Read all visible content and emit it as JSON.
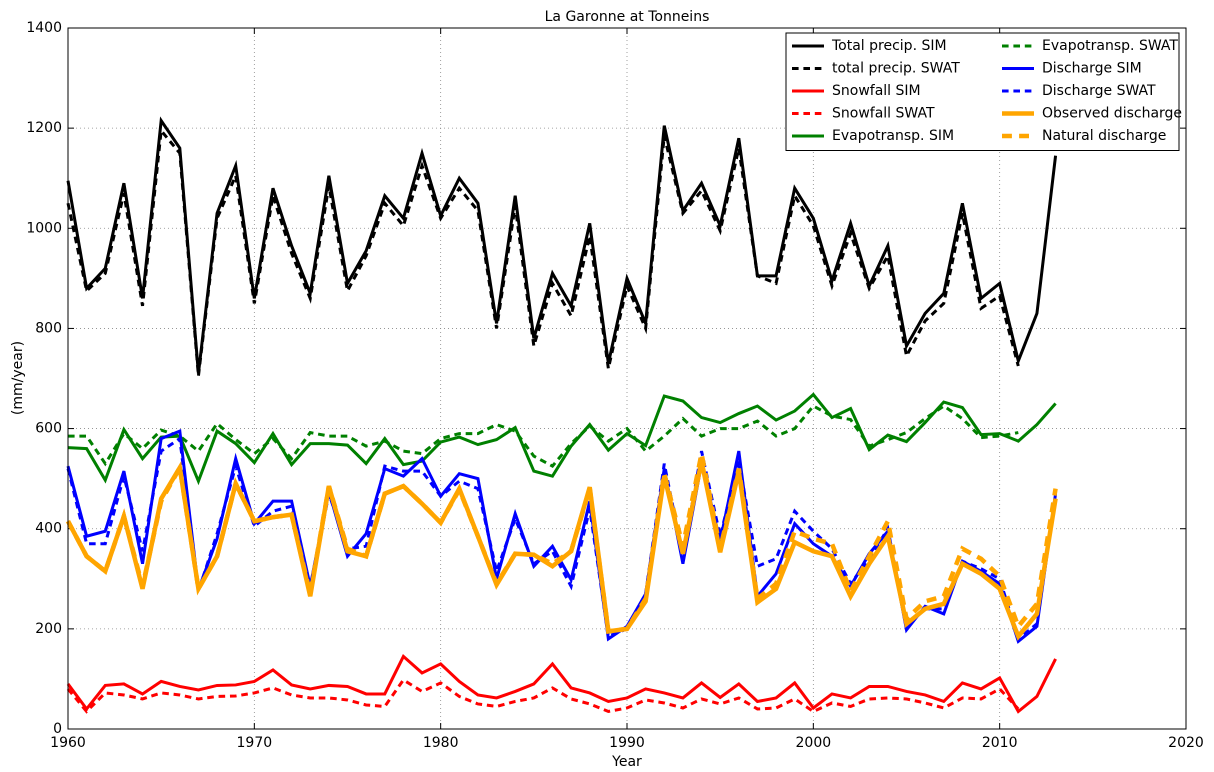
{
  "chart_data": {
    "type": "line",
    "title": "La Garonne at Tonneins",
    "xlabel": "Year",
    "ylabel": "(mm/year)",
    "x": [
      1960,
      1961,
      1962,
      1963,
      1964,
      1965,
      1966,
      1967,
      1968,
      1969,
      1970,
      1971,
      1972,
      1973,
      1974,
      1975,
      1976,
      1977,
      1978,
      1979,
      1980,
      1981,
      1982,
      1983,
      1984,
      1985,
      1986,
      1987,
      1988,
      1989,
      1990,
      1991,
      1992,
      1993,
      1994,
      1995,
      1996,
      1997,
      1998,
      1999,
      2000,
      2001,
      2002,
      2003,
      2004,
      2005,
      2006,
      2007,
      2008,
      2009,
      2010,
      2011,
      2012,
      2013
    ],
    "xlim": [
      1960,
      2020
    ],
    "xticks": [
      1960,
      1970,
      1980,
      1990,
      2000,
      2010,
      2020
    ],
    "ylim": [
      0,
      1400
    ],
    "yticks": [
      0,
      200,
      400,
      600,
      800,
      1000,
      1200,
      1400
    ],
    "grid": true,
    "legend": "upper right",
    "legend_columns": 2,
    "series": [
      {
        "name": "Total precip. SIM",
        "color": "#000000",
        "linestyle": "solid",
        "linewidth": 3,
        "values": [
          1095,
          880,
          920,
          1090,
          860,
          1215,
          1160,
          710,
          1030,
          1125,
          860,
          1080,
          965,
          870,
          1105,
          890,
          955,
          1065,
          1020,
          1150,
          1025,
          1100,
          1050,
          810,
          1065,
          780,
          910,
          845,
          1010,
          730,
          900,
          810,
          1205,
          1035,
          1090,
          1005,
          1180,
          905,
          905,
          1080,
          1020,
          895,
          1010,
          885,
          965,
          765,
          830,
          870,
          1050,
          860,
          890,
          735,
          830,
          1145
        ]
      },
      {
        "name": "total precip. SWAT",
        "color": "#000000",
        "linestyle": "dashed",
        "linewidth": 3,
        "values": [
          1050,
          875,
          910,
          1070,
          845,
          1195,
          1150,
          705,
          1020,
          1105,
          850,
          1065,
          950,
          860,
          1085,
          875,
          945,
          1050,
          1005,
          1125,
          1020,
          1080,
          1035,
          800,
          1045,
          765,
          890,
          825,
          985,
          720,
          885,
          800,
          1185,
          1030,
          1075,
          995,
          1160,
          905,
          890,
          1065,
          1005,
          885,
          990,
          880,
          945,
          745,
          815,
          850,
          1030,
          840,
          865,
          725,
          null,
          null
        ]
      },
      {
        "name": "Snowfall SIM",
        "color": "#ff0000",
        "linestyle": "solid",
        "linewidth": 3,
        "values": [
          90,
          40,
          87,
          90,
          70,
          95,
          85,
          78,
          87,
          88,
          95,
          118,
          88,
          80,
          87,
          85,
          70,
          70,
          145,
          112,
          130,
          95,
          68,
          62,
          75,
          90,
          130,
          82,
          72,
          55,
          62,
          80,
          72,
          62,
          92,
          63,
          90,
          55,
          62,
          92,
          42,
          70,
          62,
          85,
          85,
          75,
          68,
          55,
          92,
          80,
          102,
          35,
          65,
          140
        ]
      },
      {
        "name": "Snowfall SWAT",
        "color": "#ff0000",
        "linestyle": "dashed",
        "linewidth": 3,
        "values": [
          80,
          35,
          72,
          68,
          60,
          72,
          68,
          60,
          65,
          66,
          72,
          82,
          68,
          62,
          62,
          58,
          48,
          45,
          98,
          75,
          92,
          65,
          50,
          45,
          55,
          62,
          82,
          60,
          50,
          35,
          42,
          58,
          52,
          42,
          60,
          50,
          62,
          40,
          42,
          60,
          35,
          52,
          45,
          60,
          62,
          60,
          52,
          42,
          62,
          60,
          80,
          40,
          null,
          null
        ]
      },
      {
        "name": "Evapotransp. SIM",
        "color": "#008000",
        "linestyle": "solid",
        "linewidth": 3,
        "values": [
          562,
          560,
          497,
          598,
          540,
          583,
          585,
          495,
          595,
          570,
          532,
          590,
          528,
          570,
          570,
          567,
          530,
          580,
          528,
          535,
          573,
          583,
          568,
          578,
          602,
          515,
          505,
          565,
          608,
          557,
          590,
          566,
          665,
          655,
          622,
          612,
          630,
          645,
          617,
          635,
          668,
          622,
          640,
          558,
          587,
          574,
          612,
          653,
          642,
          588,
          590,
          575,
          608,
          650
        ]
      },
      {
        "name": "Evapotransp. SWAT",
        "color": "#008000",
        "linestyle": "dashed",
        "linewidth": 3,
        "values": [
          585,
          585,
          530,
          590,
          560,
          597,
          585,
          555,
          610,
          578,
          550,
          580,
          540,
          592,
          585,
          585,
          565,
          575,
          555,
          550,
          580,
          590,
          590,
          608,
          595,
          545,
          525,
          570,
          605,
          575,
          600,
          555,
          585,
          620,
          585,
          600,
          600,
          615,
          585,
          600,
          645,
          625,
          618,
          565,
          578,
          592,
          620,
          645,
          620,
          582,
          585,
          592,
          null,
          null
        ]
      },
      {
        "name": "Discharge SIM",
        "color": "#0000ff",
        "linestyle": "solid",
        "linewidth": 3,
        "values": [
          525,
          385,
          395,
          515,
          330,
          580,
          595,
          278,
          380,
          540,
          410,
          455,
          455,
          285,
          475,
          345,
          390,
          520,
          505,
          540,
          465,
          510,
          500,
          300,
          430,
          325,
          365,
          298,
          455,
          180,
          205,
          270,
          520,
          330,
          530,
          375,
          555,
          265,
          310,
          410,
          370,
          345,
          285,
          350,
          395,
          198,
          245,
          230,
          335,
          315,
          290,
          175,
          205,
          470
        ]
      },
      {
        "name": "Discharge SWAT",
        "color": "#0000ff",
        "linestyle": "dashed",
        "linewidth": 3,
        "values": [
          520,
          370,
          370,
          505,
          355,
          555,
          580,
          275,
          390,
          525,
          405,
          435,
          445,
          280,
          470,
          360,
          365,
          525,
          515,
          515,
          465,
          495,
          480,
          315,
          420,
          330,
          355,
          285,
          440,
          185,
          200,
          270,
          530,
          345,
          555,
          385,
          535,
          325,
          340,
          435,
          395,
          360,
          290,
          340,
          400,
          205,
          240,
          240,
          335,
          320,
          300,
          180,
          210,
          470
        ]
      },
      {
        "name": "Observed discharge",
        "color": "#ffa500",
        "linestyle": "solid",
        "linewidth": 4.5,
        "values": [
          415,
          345,
          315,
          425,
          280,
          460,
          522,
          280,
          345,
          490,
          415,
          423,
          428,
          265,
          485,
          355,
          345,
          470,
          485,
          450,
          412,
          480,
          385,
          288,
          350,
          348,
          325,
          355,
          483,
          195,
          200,
          255,
          505,
          350,
          535,
          353,
          515,
          253,
          280,
          373,
          355,
          345,
          265,
          330,
          385,
          210,
          240,
          250,
          330,
          310,
          280,
          185,
          230,
          460
        ]
      },
      {
        "name": "Natural discharge",
        "color": "#ffa500",
        "linestyle": "dashed",
        "linewidth": 4.5,
        "values": [
          415,
          345,
          315,
          425,
          285,
          455,
          522,
          280,
          345,
          490,
          415,
          423,
          428,
          270,
          485,
          360,
          345,
          470,
          485,
          450,
          412,
          478,
          385,
          290,
          350,
          348,
          330,
          355,
          480,
          195,
          200,
          260,
          510,
          365,
          550,
          360,
          520,
          260,
          290,
          395,
          380,
          370,
          275,
          345,
          415,
          220,
          255,
          265,
          360,
          340,
          305,
          205,
          250,
          480
        ]
      }
    ]
  }
}
